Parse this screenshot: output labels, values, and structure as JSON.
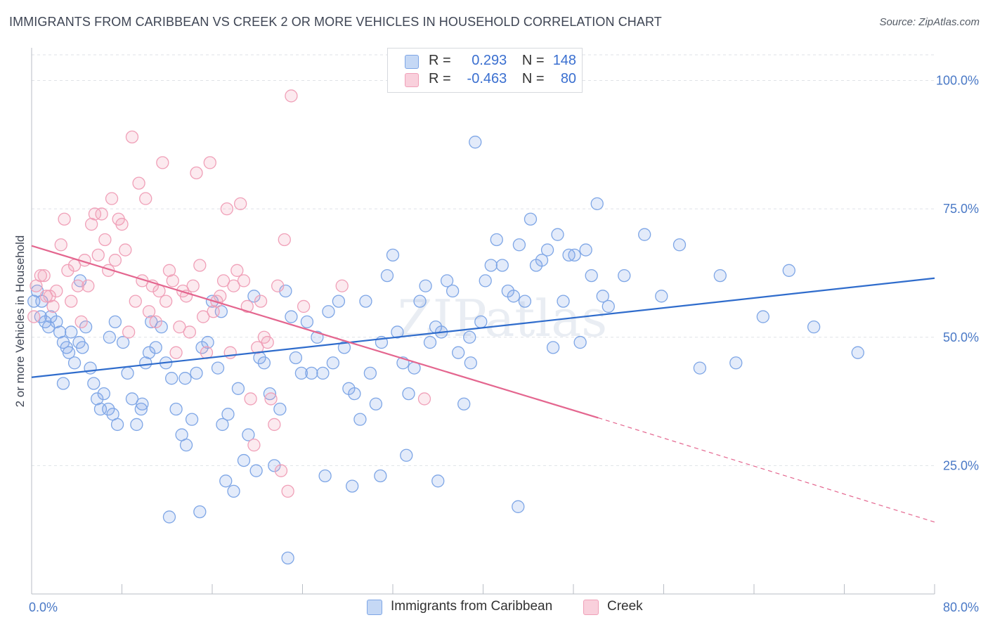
{
  "title": "IMMIGRANTS FROM CARIBBEAN VS CREEK 2 OR MORE VEHICLES IN HOUSEHOLD CORRELATION CHART",
  "source": "Source: ZipAtlas.com",
  "watermark": "ZIPatlas",
  "legend_top": [
    {
      "r_label": "R =",
      "r_value": "0.293",
      "n_label": "N =",
      "n_value": "148",
      "color": "#7ea6e6"
    },
    {
      "r_label": "R =",
      "r_value": "-0.463",
      "n_label": "N =",
      "n_value": "80",
      "color": "#f0a0b8"
    }
  ],
  "chart_data": {
    "type": "scatter",
    "ylabel": "2 or more Vehicles in Household",
    "xlim": [
      0,
      80
    ],
    "ylim": [
      0,
      105
    ],
    "x_tick_labels": [
      {
        "x": 0,
        "label": "0.0%"
      },
      {
        "x": 80,
        "label": "80.0%"
      }
    ],
    "y_tick_labels": [
      {
        "y": 25,
        "label": "25.0%"
      },
      {
        "y": 50,
        "label": "50.0%"
      },
      {
        "y": 75,
        "label": "75.0%"
      },
      {
        "y": 100,
        "label": "100.0%"
      }
    ],
    "grid": true,
    "series": [
      {
        "name": "Immigrants from Caribbean",
        "color": "#7ea6e6",
        "line_color": "#2f6ccc",
        "trend": {
          "x0": 0,
          "y0": 42.2,
          "x1": 80,
          "y1": 61.5
        },
        "points": [
          [
            0.2,
            57
          ],
          [
            0.5,
            59
          ],
          [
            0.8,
            54
          ],
          [
            1.2,
            53
          ],
          [
            1.5,
            52
          ],
          [
            0.9,
            57
          ],
          [
            1.7,
            54
          ],
          [
            2.2,
            53
          ],
          [
            2.5,
            51
          ],
          [
            2.8,
            49
          ],
          [
            3.1,
            48
          ],
          [
            3.5,
            51
          ],
          [
            3.8,
            45
          ],
          [
            4.2,
            49
          ],
          [
            4.5,
            48
          ],
          [
            4.8,
            52
          ],
          [
            5.2,
            44
          ],
          [
            5.5,
            41
          ],
          [
            5.8,
            38
          ],
          [
            6.1,
            36
          ],
          [
            6.4,
            39
          ],
          [
            6.8,
            36
          ],
          [
            7.2,
            35
          ],
          [
            7.6,
            33
          ],
          [
            8.1,
            49
          ],
          [
            8.5,
            43
          ],
          [
            8.9,
            38
          ],
          [
            9.3,
            33
          ],
          [
            9.7,
            36
          ],
          [
            10.1,
            45
          ],
          [
            10.6,
            53
          ],
          [
            11.0,
            48
          ],
          [
            11.5,
            52
          ],
          [
            11.9,
            45
          ],
          [
            12.4,
            42
          ],
          [
            12.8,
            36
          ],
          [
            13.3,
            31
          ],
          [
            13.7,
            29
          ],
          [
            14.2,
            34
          ],
          [
            14.6,
            43
          ],
          [
            15.1,
            48
          ],
          [
            15.6,
            49
          ],
          [
            16.0,
            57
          ],
          [
            16.5,
            44
          ],
          [
            16.9,
            33
          ],
          [
            17.4,
            35
          ],
          [
            17.9,
            20
          ],
          [
            18.3,
            40
          ],
          [
            18.8,
            26
          ],
          [
            19.2,
            31
          ],
          [
            19.7,
            58
          ],
          [
            20.2,
            46
          ],
          [
            20.6,
            45
          ],
          [
            21.1,
            39
          ],
          [
            21.5,
            25
          ],
          [
            22.0,
            36
          ],
          [
            22.5,
            59
          ],
          [
            23.0,
            54
          ],
          [
            23.4,
            46
          ],
          [
            23.9,
            43
          ],
          [
            24.4,
            53
          ],
          [
            24.8,
            43
          ],
          [
            25.3,
            50
          ],
          [
            25.8,
            43
          ],
          [
            26.3,
            55
          ],
          [
            26.7,
            45
          ],
          [
            27.2,
            57
          ],
          [
            27.7,
            48
          ],
          [
            28.1,
            40
          ],
          [
            28.6,
            39
          ],
          [
            29.1,
            34
          ],
          [
            29.6,
            57
          ],
          [
            30.0,
            43
          ],
          [
            30.5,
            37
          ],
          [
            31.0,
            49
          ],
          [
            31.5,
            62
          ],
          [
            32.0,
            66
          ],
          [
            32.4,
            51
          ],
          [
            32.9,
            45
          ],
          [
            33.4,
            39
          ],
          [
            33.9,
            44
          ],
          [
            34.4,
            57
          ],
          [
            34.9,
            60
          ],
          [
            35.3,
            49
          ],
          [
            35.8,
            52
          ],
          [
            36.3,
            51
          ],
          [
            36.8,
            61
          ],
          [
            37.3,
            59
          ],
          [
            37.8,
            47
          ],
          [
            38.3,
            37
          ],
          [
            38.8,
            50
          ],
          [
            39.3,
            88
          ],
          [
            39.8,
            53
          ],
          [
            40.2,
            61
          ],
          [
            40.7,
            64
          ],
          [
            41.2,
            69
          ],
          [
            41.7,
            64
          ],
          [
            42.2,
            59
          ],
          [
            42.7,
            58
          ],
          [
            43.2,
            68
          ],
          [
            43.7,
            57
          ],
          [
            44.2,
            73
          ],
          [
            44.7,
            64
          ],
          [
            45.2,
            65
          ],
          [
            45.7,
            67
          ],
          [
            46.2,
            48
          ],
          [
            46.6,
            70
          ],
          [
            47.1,
            57
          ],
          [
            47.6,
            66
          ],
          [
            48.1,
            66
          ],
          [
            48.6,
            49
          ],
          [
            49.1,
            67
          ],
          [
            49.6,
            62
          ],
          [
            50.1,
            76
          ],
          [
            50.6,
            58
          ],
          [
            51.1,
            56
          ],
          [
            52.5,
            62
          ],
          [
            54.3,
            70
          ],
          [
            55.8,
            58
          ],
          [
            57.4,
            68
          ],
          [
            59.2,
            44
          ],
          [
            61.0,
            62
          ],
          [
            62.4,
            45
          ],
          [
            64.8,
            54
          ],
          [
            67.1,
            63
          ],
          [
            69.3,
            52
          ],
          [
            73.2,
            47
          ],
          [
            4.3,
            61
          ],
          [
            7.4,
            53
          ],
          [
            9.8,
            37
          ],
          [
            12.2,
            15
          ],
          [
            14.9,
            16
          ],
          [
            17.2,
            22
          ],
          [
            19.9,
            24
          ],
          [
            22.7,
            7
          ],
          [
            26.0,
            23
          ],
          [
            28.4,
            21
          ],
          [
            30.9,
            23
          ],
          [
            33.2,
            27
          ],
          [
            36.0,
            22
          ],
          [
            38.9,
            45
          ],
          [
            43.1,
            17
          ],
          [
            2.8,
            41
          ],
          [
            3.3,
            47
          ],
          [
            6.9,
            50
          ],
          [
            10.4,
            47
          ],
          [
            13.6,
            42
          ],
          [
            16.8,
            55
          ]
        ]
      },
      {
        "name": "Creek",
        "color": "#f0a0b8",
        "line_color": "#e4668f",
        "trend": {
          "x0": 0,
          "y0": 67.8,
          "x1": 50.2,
          "y1": 34.3
        },
        "trend_dashed": {
          "x0": 50.2,
          "y0": 34.3,
          "x1": 80,
          "y1": 14.0
        },
        "points": [
          [
            0.2,
            54
          ],
          [
            0.4,
            60
          ],
          [
            0.8,
            62
          ],
          [
            1.1,
            62
          ],
          [
            1.3,
            58
          ],
          [
            1.6,
            58
          ],
          [
            1.9,
            56
          ],
          [
            2.2,
            59
          ],
          [
            2.6,
            68
          ],
          [
            2.9,
            73
          ],
          [
            3.2,
            63
          ],
          [
            3.5,
            57
          ],
          [
            3.8,
            64
          ],
          [
            4.1,
            60
          ],
          [
            4.4,
            53
          ],
          [
            4.7,
            65
          ],
          [
            5.0,
            60
          ],
          [
            5.3,
            72
          ],
          [
            5.6,
            74
          ],
          [
            5.9,
            66
          ],
          [
            6.2,
            74
          ],
          [
            6.5,
            69
          ],
          [
            6.8,
            63
          ],
          [
            7.1,
            77
          ],
          [
            7.4,
            65
          ],
          [
            7.7,
            73
          ],
          [
            8.0,
            72
          ],
          [
            8.3,
            67
          ],
          [
            8.6,
            51
          ],
          [
            8.9,
            89
          ],
          [
            9.2,
            57
          ],
          [
            9.5,
            80
          ],
          [
            9.8,
            61
          ],
          [
            10.1,
            77
          ],
          [
            10.4,
            55
          ],
          [
            10.7,
            60
          ],
          [
            11.0,
            53
          ],
          [
            11.3,
            59
          ],
          [
            11.6,
            84
          ],
          [
            11.9,
            57
          ],
          [
            12.2,
            63
          ],
          [
            12.5,
            61
          ],
          [
            12.8,
            47
          ],
          [
            13.1,
            52
          ],
          [
            13.4,
            59
          ],
          [
            13.7,
            58
          ],
          [
            14.0,
            51
          ],
          [
            14.3,
            60
          ],
          [
            14.6,
            82
          ],
          [
            14.9,
            64
          ],
          [
            15.2,
            54
          ],
          [
            15.5,
            47
          ],
          [
            15.8,
            84
          ],
          [
            16.1,
            55
          ],
          [
            16.4,
            57
          ],
          [
            16.7,
            58
          ],
          [
            17.0,
            61
          ],
          [
            17.3,
            75
          ],
          [
            17.6,
            47
          ],
          [
            17.9,
            60
          ],
          [
            18.2,
            63
          ],
          [
            18.5,
            76
          ],
          [
            18.8,
            61
          ],
          [
            19.1,
            56
          ],
          [
            19.4,
            38
          ],
          [
            19.7,
            29
          ],
          [
            20.0,
            48
          ],
          [
            20.3,
            57
          ],
          [
            20.6,
            50
          ],
          [
            20.9,
            49
          ],
          [
            21.2,
            38
          ],
          [
            21.5,
            33
          ],
          [
            21.8,
            60
          ],
          [
            22.1,
            24
          ],
          [
            22.4,
            69
          ],
          [
            22.7,
            20
          ],
          [
            23.0,
            97
          ],
          [
            24.1,
            56
          ],
          [
            27.5,
            60
          ],
          [
            34.8,
            38
          ]
        ]
      }
    ]
  },
  "legend_bottom": [
    {
      "label": "Immigrants from Caribbean",
      "color": "#7ea6e6"
    },
    {
      "label": "Creek",
      "color": "#f0a0b8"
    }
  ]
}
